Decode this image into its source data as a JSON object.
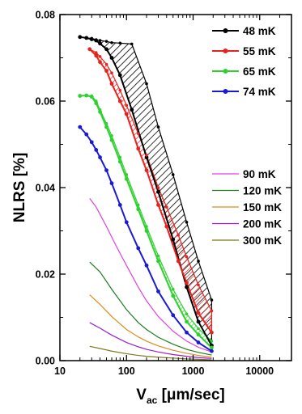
{
  "chart_data": {
    "type": "line",
    "xlabel": "V",
    "xlabel_sub": "ac",
    "xlabel_unit": " [μm/sec]",
    "ylabel": "NLRS [%]",
    "x_scale": "log",
    "xlim": [
      10,
      30000
    ],
    "ylim": [
      0,
      0.08
    ],
    "x_ticks": [
      10,
      100,
      1000,
      10000
    ],
    "x_tick_labels": [
      "10",
      "100",
      "1000",
      "10000"
    ],
    "y_ticks": [
      0.0,
      0.02,
      0.04,
      0.06,
      0.08
    ],
    "y_tick_labels": [
      "0.00",
      "0.02",
      "0.04",
      "0.06",
      "0.08"
    ],
    "grid": false,
    "legend_position": "top-right",
    "series": [
      {
        "name": "48 mK",
        "color": "#000000",
        "marker": "dot",
        "hatched": true,
        "x": [
          20,
          25,
          30,
          35,
          40,
          50,
          60,
          80,
          120,
          200,
          300,
          500,
          800,
          1200,
          1900
        ],
        "y": [
          0.0748,
          0.0746,
          0.0743,
          0.074,
          0.0733,
          0.072,
          0.07,
          0.066,
          0.058,
          0.047,
          0.039,
          0.028,
          0.017,
          0.009,
          0.0035
        ],
        "upper": [
          0.0748,
          0.0746,
          0.0745,
          0.0742,
          0.074,
          0.0738,
          0.0735,
          0.0734,
          0.0732,
          0.064,
          0.054,
          0.043,
          0.032,
          0.023,
          0.014
        ]
      },
      {
        "name": "55 mK",
        "color": "#e8221e",
        "marker": "dot",
        "hatched": true,
        "x": [
          28,
          35,
          40,
          50,
          60,
          80,
          100,
          150,
          200,
          300,
          400,
          600,
          800,
          1200,
          1900
        ],
        "y": [
          0.072,
          0.0705,
          0.069,
          0.067,
          0.064,
          0.06,
          0.057,
          0.049,
          0.044,
          0.036,
          0.031,
          0.023,
          0.018,
          0.011,
          0.0065
        ],
        "upper": [
          0.072,
          0.0712,
          0.0703,
          0.0685,
          0.0665,
          0.0625,
          0.059,
          0.0525,
          0.0475,
          0.04,
          0.0355,
          0.029,
          0.024,
          0.0175,
          0.0115
        ]
      },
      {
        "name": "65 mK",
        "color": "#2ed12e",
        "marker": "dot",
        "hatched": true,
        "x": [
          20,
          25,
          30,
          35,
          40,
          50,
          60,
          80,
          100,
          150,
          200,
          300,
          500,
          800,
          1200,
          1900
        ],
        "y": [
          0.0612,
          0.0613,
          0.061,
          0.0595,
          0.0575,
          0.054,
          0.051,
          0.046,
          0.042,
          0.035,
          0.03,
          0.023,
          0.015,
          0.009,
          0.006,
          0.003
        ],
        "upper": [
          0.0612,
          0.0613,
          0.0612,
          0.06,
          0.058,
          0.0548,
          0.052,
          0.047,
          0.043,
          0.036,
          0.031,
          0.0242,
          0.0165,
          0.0108,
          0.0074,
          0.0045
        ]
      },
      {
        "name": "74 mK",
        "color": "#1a1ad6",
        "marker": "dot",
        "hatched": false,
        "x": [
          20,
          25,
          30,
          35,
          40,
          50,
          60,
          80,
          100,
          150,
          200,
          300,
          500,
          800,
          1200,
          1900
        ],
        "y": [
          0.054,
          0.0523,
          0.0505,
          0.0487,
          0.047,
          0.044,
          0.041,
          0.036,
          0.032,
          0.026,
          0.022,
          0.016,
          0.0105,
          0.0065,
          0.0042,
          0.0022
        ]
      },
      {
        "name": "90 mK",
        "color": "#e040e0",
        "marker": "none",
        "hatched": false,
        "x": [
          28,
          35,
          50,
          70,
          100,
          150,
          200,
          300,
          500,
          800,
          1200,
          1900
        ],
        "y": [
          0.0375,
          0.0355,
          0.031,
          0.0265,
          0.022,
          0.017,
          0.0138,
          0.0102,
          0.0068,
          0.0045,
          0.0031,
          0.002
        ]
      },
      {
        "name": "120 mK",
        "color": "#1e7e1e",
        "marker": "none",
        "hatched": false,
        "x": [
          28,
          40,
          60,
          100,
          150,
          200,
          300,
          500,
          800,
          1200,
          1900
        ],
        "y": [
          0.0228,
          0.0205,
          0.0165,
          0.0118,
          0.0088,
          0.0072,
          0.0054,
          0.0038,
          0.0026,
          0.0019,
          0.0013
        ]
      },
      {
        "name": "150 mK",
        "color": "#e08a1e",
        "marker": "none",
        "hatched": false,
        "x": [
          28,
          40,
          60,
          100,
          150,
          200,
          300,
          500,
          800,
          1200,
          1900
        ],
        "y": [
          0.0152,
          0.013,
          0.0102,
          0.0072,
          0.0055,
          0.0045,
          0.0034,
          0.0024,
          0.0017,
          0.0012,
          0.0008
        ]
      },
      {
        "name": "200 mK",
        "color": "#9a1ed0",
        "marker": "none",
        "hatched": false,
        "x": [
          28,
          40,
          60,
          100,
          150,
          200,
          300,
          500,
          800,
          1200,
          1900
        ],
        "y": [
          0.0088,
          0.0075,
          0.0059,
          0.0042,
          0.0032,
          0.0026,
          0.002,
          0.0014,
          0.001,
          0.0007,
          0.0005
        ]
      },
      {
        "name": "300 mK",
        "color": "#7a7a1e",
        "marker": "none",
        "hatched": false,
        "x": [
          28,
          40,
          60,
          100,
          150,
          200,
          300,
          500,
          800,
          1200,
          1900
        ],
        "y": [
          0.0033,
          0.0028,
          0.0022,
          0.0016,
          0.0012,
          0.001,
          0.0008,
          0.0006,
          0.0004,
          0.0003,
          0.0002
        ]
      }
    ]
  }
}
